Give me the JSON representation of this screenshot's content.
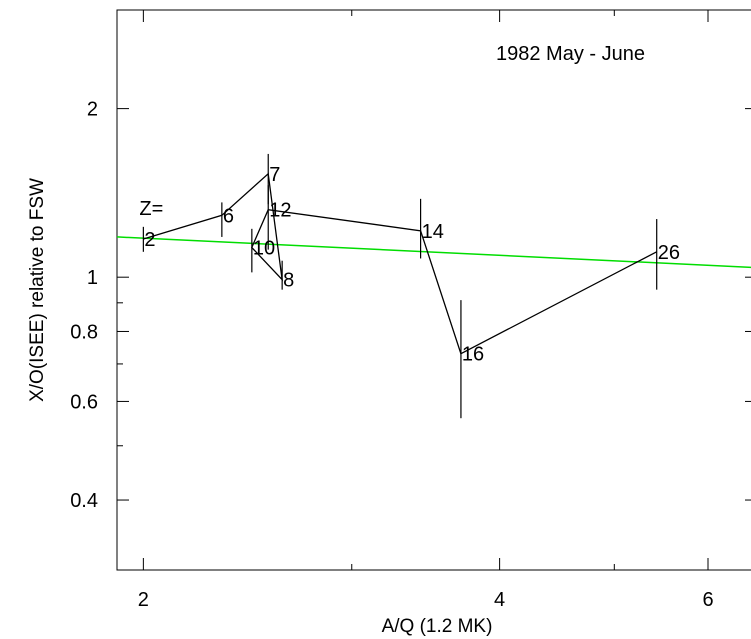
{
  "chart_data": {
    "type": "line",
    "annotation": "1982 May - June",
    "z_prefix": "Z=",
    "xlabel": "A/Q (1.2 MK)",
    "ylabel": "X/O(ISEE) relative to FSW",
    "x_scale": "log",
    "y_scale": "log",
    "xlim": [
      1.9,
      6.6
    ],
    "ylim": [
      0.3,
      3.0
    ],
    "x_ticks": [
      2,
      4,
      6
    ],
    "x_tick_labels": [
      "2",
      "4",
      "6"
    ],
    "y_ticks": [
      0.4,
      0.6,
      0.8,
      1,
      2
    ],
    "y_tick_labels": [
      "0.4",
      "0.6",
      "0.8",
      "1",
      "2"
    ],
    "grid": false,
    "series": [
      {
        "points": [
          {
            "z": "2",
            "x": 2.0,
            "y": 1.17,
            "ylo": 1.11,
            "yhi": 1.23
          },
          {
            "z": "6",
            "x": 2.33,
            "y": 1.29,
            "ylo": 1.18,
            "yhi": 1.36
          },
          {
            "z": "7",
            "x": 2.55,
            "y": 1.53,
            "ylo": 1.35,
            "yhi": 1.66
          },
          {
            "z": "12",
            "x": 2.55,
            "y": 1.32,
            "ylo": 1.12,
            "yhi": 1.46
          },
          {
            "z": "14",
            "x": 3.43,
            "y": 1.21,
            "ylo": 1.08,
            "yhi": 1.38
          },
          {
            "z": "16",
            "x": 3.71,
            "y": 0.73,
            "ylo": 0.56,
            "yhi": 0.91
          },
          {
            "z": "26",
            "x": 5.43,
            "y": 1.11,
            "ylo": 0.95,
            "yhi": 1.27
          },
          {
            "z": "10",
            "x": 2.47,
            "y": 1.13,
            "ylo": 1.02,
            "yhi": 1.22
          },
          {
            "z": "8",
            "x": 2.62,
            "y": 0.99,
            "ylo": 0.95,
            "yhi": 1.07
          }
        ],
        "connection_order": [
          "2",
          "6",
          "7",
          "8",
          "10",
          "12",
          "14",
          "16",
          "26"
        ],
        "color": "#000000"
      },
      {
        "type": "fit_line",
        "x": [
          1.9,
          6.6
        ],
        "y": [
          1.18,
          1.04
        ],
        "color": "#00dd00"
      }
    ]
  }
}
